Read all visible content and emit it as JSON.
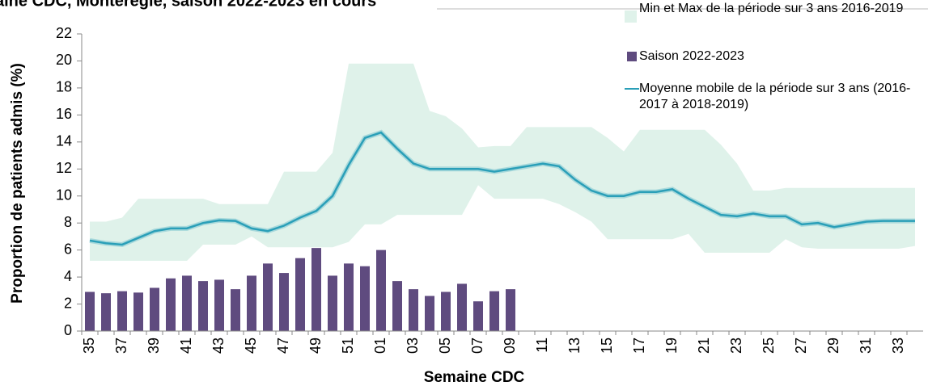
{
  "chart_data": {
    "type": "bar-line-band",
    "title": "aine CDC, Montérégie, saison 2022-2023 en cours",
    "x_label": "Semaine CDC",
    "y_label": "Proportion de patients admis (%)",
    "categories": [
      "35",
      null,
      "37",
      null,
      "39",
      null,
      "41",
      null,
      "43",
      null,
      "45",
      null,
      "47",
      null,
      "49",
      null,
      "51",
      null,
      "01",
      null,
      "03",
      null,
      "05",
      null,
      "07",
      null,
      "09",
      null,
      "11",
      null,
      "13",
      null,
      "15",
      null,
      "17",
      null,
      "19",
      null,
      "21",
      null,
      "23",
      null,
      "25",
      null,
      "27",
      null,
      "29",
      null,
      "31",
      null,
      "33",
      null
    ],
    "ylim": [
      0,
      22
    ],
    "yticks": [
      0,
      2,
      4,
      6,
      8,
      10,
      12,
      14,
      16,
      18,
      20,
      22
    ],
    "series": [
      {
        "name": "Min et Max de la période sur 3 ans 2016-2019",
        "kind": "band",
        "color": "#dff2ea",
        "values": [
          8.1,
          8.1,
          8.4,
          9.8,
          9.8,
          9.8,
          9.8,
          9.8,
          9.4,
          9.4,
          9.4,
          9.4,
          11.8,
          11.8,
          11.8,
          13.2,
          19.8,
          19.8,
          19.8,
          19.8,
          19.8,
          16.3,
          15.9,
          15.0,
          13.6,
          13.7,
          13.7,
          15.1,
          15.1,
          15.1,
          15.1,
          15.1,
          14.3,
          13.3,
          14.9,
          14.9,
          14.9,
          14.9,
          14.9,
          13.8,
          12.4,
          10.4,
          10.4,
          10.6,
          10.6,
          10.6,
          10.6,
          10.6,
          10.6,
          10.6,
          10.6,
          10.6
        ],
        "min_values": [
          5.2,
          5.2,
          5.2,
          5.2,
          5.2,
          5.2,
          5.2,
          6.4,
          6.4,
          6.4,
          7.0,
          6.2,
          6.2,
          6.2,
          6.2,
          6.2,
          6.6,
          7.9,
          7.9,
          8.6,
          8.6,
          8.6,
          8.6,
          8.6,
          10.8,
          9.8,
          9.8,
          9.8,
          9.8,
          9.4,
          8.8,
          8.1,
          6.8,
          6.8,
          6.8,
          6.8,
          6.8,
          7.2,
          5.8,
          5.8,
          5.8,
          5.8,
          5.8,
          6.8,
          6.2,
          6.1,
          6.1,
          6.1,
          6.1,
          6.1,
          6.1,
          6.3
        ]
      },
      {
        "name": "Saison 2022-2023",
        "kind": "bar",
        "color": "#5f4b7f",
        "values": [
          2.9,
          2.8,
          2.95,
          2.85,
          3.2,
          3.9,
          4.1,
          3.7,
          3.8,
          3.1,
          4.1,
          5.0,
          4.3,
          5.4,
          6.15,
          4.1,
          5.0,
          4.8,
          6.0,
          3.7,
          3.1,
          2.6,
          2.9,
          3.5,
          2.2,
          2.95,
          3.1,
          null,
          null,
          null,
          null,
          null,
          null,
          null,
          null,
          null,
          null,
          null,
          null,
          null,
          null,
          null,
          null,
          null,
          null,
          null,
          null,
          null,
          null,
          null,
          null,
          null
        ]
      },
      {
        "name": "Moyenne mobile de la période sur 3 ans (2016-2017 à 2018-2019)",
        "kind": "line",
        "color": "#2a9fb8",
        "values": [
          6.7,
          6.5,
          6.4,
          6.9,
          7.4,
          7.6,
          7.6,
          8.0,
          8.2,
          8.15,
          7.6,
          7.4,
          7.8,
          8.4,
          8.9,
          10.0,
          12.3,
          14.3,
          14.7,
          13.5,
          12.4,
          12.0,
          12.0,
          12.0,
          12.0,
          11.8,
          12.0,
          12.2,
          12.4,
          12.2,
          11.2,
          10.4,
          10.0,
          10.0,
          10.3,
          10.3,
          10.5,
          9.8,
          9.2,
          8.6,
          8.5,
          8.7,
          8.5,
          8.5,
          7.9,
          8.0,
          7.7,
          7.9,
          8.1,
          8.15,
          8.15,
          8.15
        ]
      }
    ]
  }
}
